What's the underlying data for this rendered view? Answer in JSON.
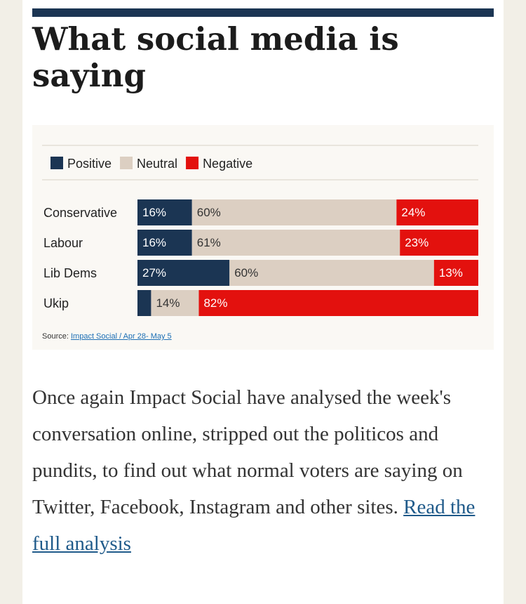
{
  "article": {
    "headline": "What social media is saying",
    "body": "Once again Impact Social have analysed the week's conversation online, stripped out the politicos and pundits, to find out what normal voters are saying on Twitter, Facebook, Instagram and other sites.",
    "link_text": "Read the full analysis"
  },
  "chart_data": {
    "type": "bar",
    "stacked": true,
    "orientation": "horizontal",
    "categories": [
      "Conservative",
      "Labour",
      "Lib Dems",
      "Ukip"
    ],
    "series": [
      {
        "name": "Positive",
        "color": "#1b3553",
        "values": [
          16,
          16,
          27,
          4
        ],
        "labels": [
          "16%",
          "16%",
          "27%",
          ""
        ]
      },
      {
        "name": "Neutral",
        "color": "#dccfc2",
        "values": [
          60,
          61,
          60,
          14
        ],
        "labels": [
          "60%",
          "61%",
          "60%",
          "14%"
        ]
      },
      {
        "name": "Negative",
        "color": "#e3110e",
        "values": [
          24,
          23,
          13,
          82
        ],
        "labels": [
          "24%",
          "23%",
          "13%",
          "82%"
        ]
      }
    ],
    "xlim": [
      0,
      100
    ],
    "legend_position": "top-left",
    "source_label": "Source:",
    "source_text": "Impact Social / Apr 28- May 5"
  }
}
